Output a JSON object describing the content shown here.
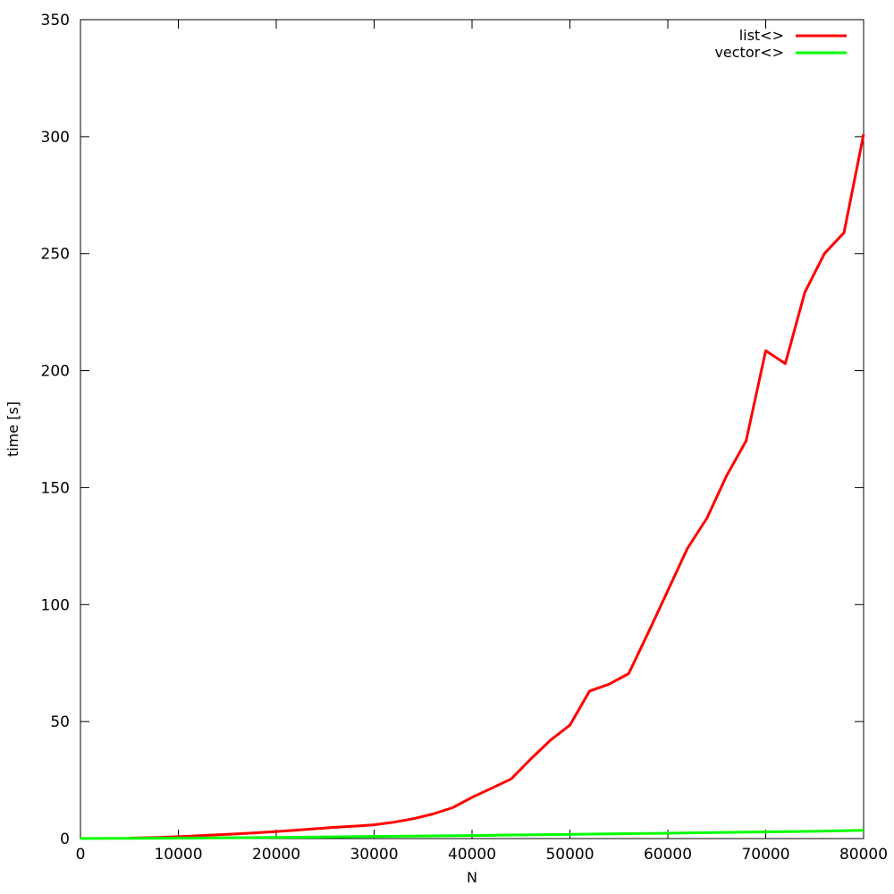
{
  "chart_data": {
    "type": "line",
    "title": "",
    "xlabel": "N",
    "ylabel": "time [s]",
    "xlim": [
      0,
      80000
    ],
    "ylim": [
      0,
      350
    ],
    "x_tick_step": 10000,
    "y_tick_step": 50,
    "x_tick_labels": [
      "0",
      "10000",
      "20000",
      "30000",
      "40000",
      "50000",
      "60000",
      "70000",
      "80000"
    ],
    "y_tick_labels": [
      "0",
      "50",
      "100",
      "150",
      "200",
      "250",
      "300",
      "350"
    ],
    "grid": false,
    "legend_position": "top-right-inside",
    "background_color": "#ffffff",
    "axis_color": "#000000",
    "series": [
      {
        "name": "list<>",
        "color": "#ff0000",
        "points": [
          [
            5000,
            0.2
          ],
          [
            6000,
            0.3
          ],
          [
            8000,
            0.5
          ],
          [
            10000,
            0.8
          ],
          [
            12000,
            1.2
          ],
          [
            14000,
            1.6
          ],
          [
            16000,
            2.0
          ],
          [
            18000,
            2.5
          ],
          [
            20000,
            3.0
          ],
          [
            22000,
            3.6
          ],
          [
            24000,
            4.2
          ],
          [
            26000,
            4.8
          ],
          [
            28000,
            5.3
          ],
          [
            30000,
            5.9
          ],
          [
            32000,
            7.0
          ],
          [
            34000,
            8.5
          ],
          [
            36000,
            10.5
          ],
          [
            38000,
            13.2
          ],
          [
            40000,
            17.6
          ],
          [
            42000,
            21.5
          ],
          [
            44000,
            25.5
          ],
          [
            46000,
            34.0
          ],
          [
            48000,
            42.0
          ],
          [
            50000,
            48.5
          ],
          [
            52000,
            63.0
          ],
          [
            54000,
            66.0
          ],
          [
            56000,
            70.5
          ],
          [
            58000,
            88.0
          ],
          [
            60000,
            106.0
          ],
          [
            62000,
            124.0
          ],
          [
            64000,
            137.0
          ],
          [
            66000,
            155.0
          ],
          [
            68000,
            170.0
          ],
          [
            70000,
            208.5
          ],
          [
            72000,
            203.0
          ],
          [
            74000,
            233.5
          ],
          [
            76000,
            250.0
          ],
          [
            78000,
            259.0
          ],
          [
            80000,
            301.0
          ]
        ]
      },
      {
        "name": "vector<>",
        "color": "#00ff00",
        "points": [
          [
            0,
            0.05
          ],
          [
            5000,
            0.1
          ],
          [
            10000,
            0.2
          ],
          [
            15000,
            0.35
          ],
          [
            20000,
            0.5
          ],
          [
            25000,
            0.7
          ],
          [
            30000,
            0.9
          ],
          [
            35000,
            1.1
          ],
          [
            40000,
            1.3
          ],
          [
            45000,
            1.55
          ],
          [
            50000,
            1.8
          ],
          [
            55000,
            2.05
          ],
          [
            60000,
            2.3
          ],
          [
            65000,
            2.6
          ],
          [
            70000,
            2.85
          ],
          [
            75000,
            3.1
          ],
          [
            80000,
            3.5
          ]
        ]
      }
    ]
  }
}
